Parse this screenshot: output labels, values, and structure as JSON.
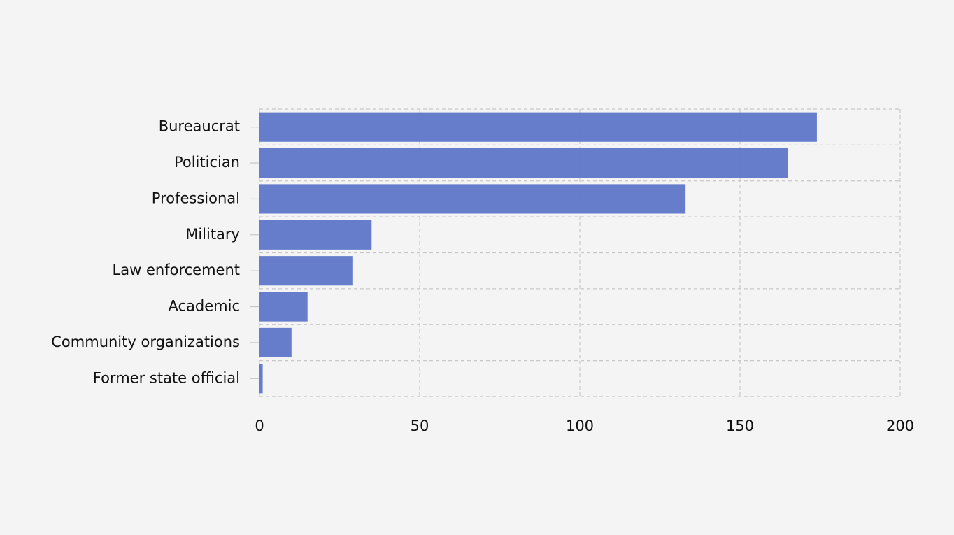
{
  "chart_data": {
    "type": "barh",
    "categories": [
      "Bureaucrat",
      "Politician",
      "Professional",
      "Military",
      "Law enforcement",
      "Academic",
      "Community organizations",
      "Former state official"
    ],
    "values": [
      174,
      165,
      133,
      35,
      29,
      15,
      10,
      1
    ],
    "color": "#6079c9",
    "xlim": [
      0,
      200
    ],
    "xticks": [
      0,
      50,
      100,
      150,
      200
    ],
    "grid": true
  }
}
